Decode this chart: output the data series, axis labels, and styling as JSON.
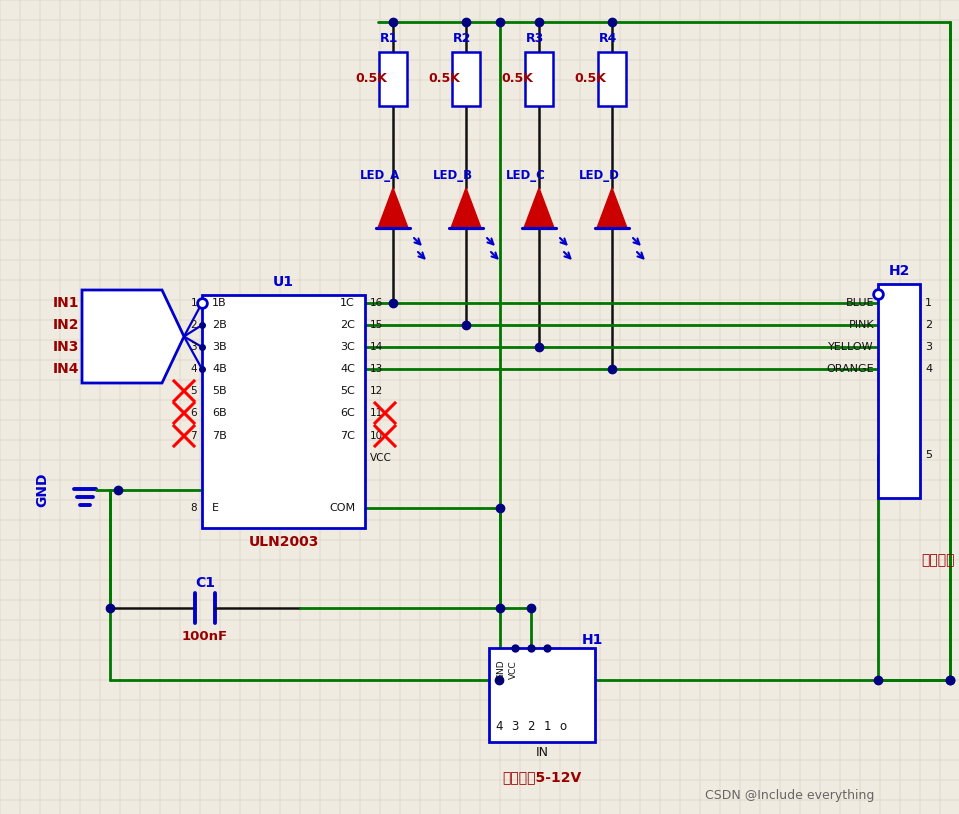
{
  "bg_color": "#f0ebe0",
  "grid_color": "#d0c8b8",
  "G": "#007700",
  "B": "#0000cc",
  "BK": "#111111",
  "DB": "#000080",
  "R": "#cc0000",
  "DR": "#990000",
  "figsize": [
    9.59,
    8.14
  ],
  "dpi": 100,
  "res_labels": [
    "R1",
    "R2",
    "R3",
    "R4"
  ],
  "res_vals": [
    "0.5K",
    "0.5K",
    "0.5K",
    "0.5K"
  ],
  "led_labels": [
    "LED_A",
    "LED_B",
    "LED_C",
    "LED_D"
  ],
  "in_labels": [
    "IN1",
    "IN2",
    "IN3",
    "IN4"
  ],
  "ic_left_labels": [
    "1B",
    "2B",
    "3B",
    "4B",
    "5B",
    "6B",
    "7B",
    "E"
  ],
  "ic_left_pins": [
    "1",
    "2",
    "3",
    "4",
    "5",
    "6",
    "7",
    "8"
  ],
  "ic_right_labels": [
    "1C",
    "2C",
    "3C",
    "4C",
    "5C",
    "6C",
    "7C",
    "COM"
  ],
  "ic_right_pins": [
    "16",
    "15",
    "14",
    "13",
    "12",
    "11",
    "10",
    ""
  ],
  "h2_labels": [
    "BLUE",
    "PINK",
    "YELLOW",
    "ORANGE"
  ],
  "watermark": "CSDN @Include everything",
  "motor_label": "电机插针",
  "power_label": "电源插针5-12V",
  "gnd_label": "GND",
  "c1_label": "C1",
  "c1_val": "100nF",
  "u1_label": "U1",
  "uln_label": "ULN2003",
  "h1_label": "H1",
  "h2_label": "H2"
}
